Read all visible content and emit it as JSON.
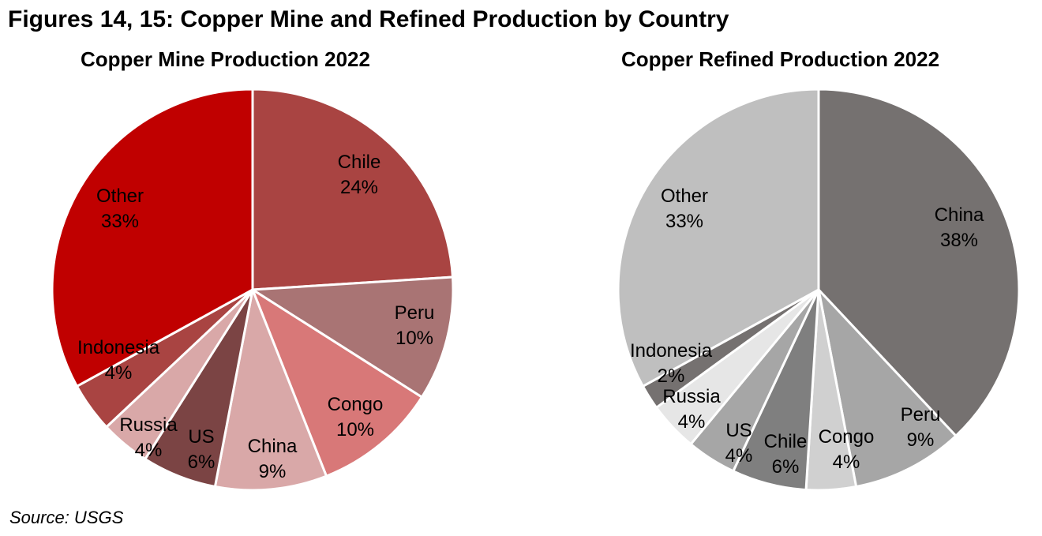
{
  "title": "Figures 14, 15: Copper Mine and Refined Production by Country",
  "source": "Source: USGS",
  "chart_data": [
    {
      "type": "pie",
      "title": "Copper Mine Production 2022",
      "unit": "%",
      "slices": [
        {
          "label": "Chile",
          "value": 24,
          "value_label": "24%",
          "color": "#a94442"
        },
        {
          "label": "Peru",
          "value": 10,
          "value_label": "10%",
          "color": "#a97474"
        },
        {
          "label": "Congo",
          "value": 10,
          "value_label": "10%",
          "color": "#d87878"
        },
        {
          "label": "China",
          "value": 9,
          "value_label": "9%",
          "color": "#d9a8a8"
        },
        {
          "label": "US",
          "value": 6,
          "value_label": "6%",
          "color": "#7b4444"
        },
        {
          "label": "Russia",
          "value": 4,
          "value_label": "4%",
          "color": "#d9a8a8"
        },
        {
          "label": "Indonesia",
          "value": 4,
          "value_label": "4%",
          "color": "#a94442"
        },
        {
          "label": "Other",
          "value": 33,
          "value_label": "33%",
          "color": "#c00000"
        }
      ]
    },
    {
      "type": "pie",
      "title": "Copper Refined Production 2022",
      "unit": "%",
      "slices": [
        {
          "label": "China",
          "value": 38,
          "value_label": "38%",
          "color": "#757170"
        },
        {
          "label": "Peru",
          "value": 9,
          "value_label": "9%",
          "color": "#a6a6a6"
        },
        {
          "label": "Congo",
          "value": 4,
          "value_label": "4%",
          "color": "#d0d0d0"
        },
        {
          "label": "Chile",
          "value": 6,
          "value_label": "6%",
          "color": "#7f7f7f"
        },
        {
          "label": "US",
          "value": 4,
          "value_label": "4%",
          "color": "#a6a6a6"
        },
        {
          "label": "Russia",
          "value": 4,
          "value_label": "4%",
          "color": "#e6e6e6"
        },
        {
          "label": "Indonesia",
          "value": 2,
          "value_label": "2%",
          "color": "#757170"
        },
        {
          "label": "Other",
          "value": 33,
          "value_label": "33%",
          "color": "#bfbfbf"
        }
      ]
    }
  ]
}
